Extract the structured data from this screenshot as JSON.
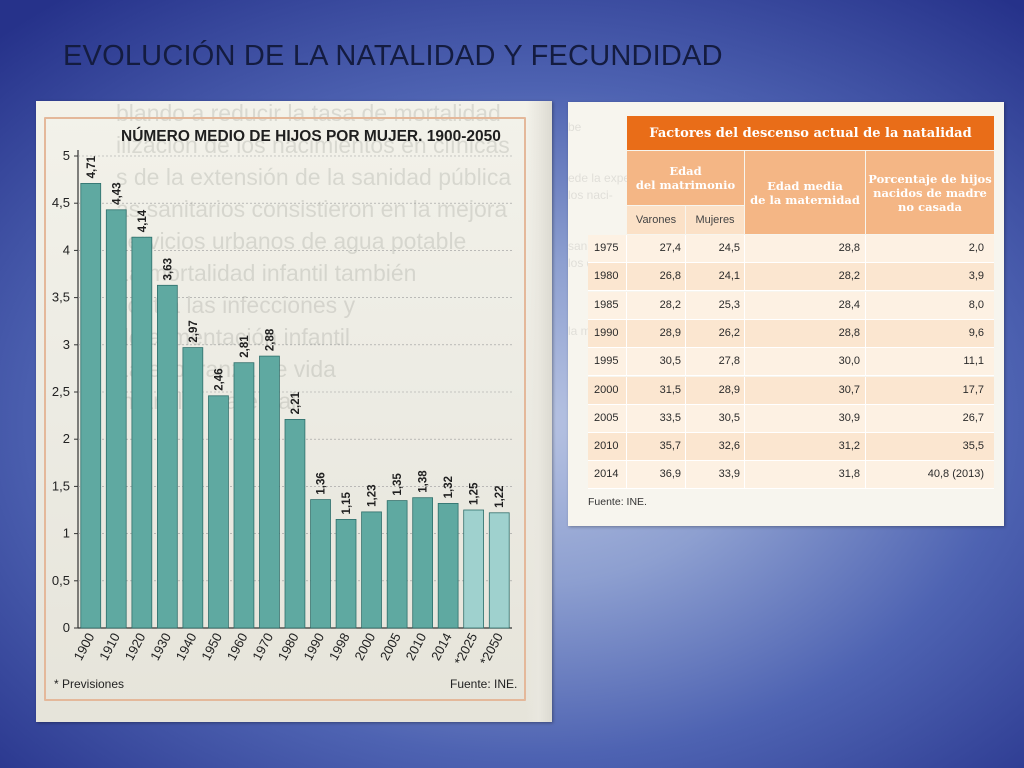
{
  "slide": {
    "title": "EVOLUCIÓN DE LA NATALIDAD Y FECUNDIDAD"
  },
  "chart_data": {
    "type": "bar",
    "title": "NÚMERO MEDIO DE HIJOS POR MUJER. 1900-2050",
    "categories": [
      "1900",
      "1910",
      "1920",
      "1930",
      "1940",
      "1950",
      "1960",
      "1970",
      "1980",
      "1990",
      "1998",
      "2000",
      "2005",
      "2010",
      "2014",
      "*2025",
      "*2050"
    ],
    "values": [
      4.71,
      4.43,
      4.14,
      3.63,
      2.97,
      2.46,
      2.81,
      2.88,
      2.21,
      1.36,
      1.15,
      1.23,
      1.35,
      1.38,
      1.32,
      1.25,
      1.22
    ],
    "value_labels": [
      "4,71",
      "4,43",
      "4,14",
      "3,63",
      "2,97",
      "2,46",
      "2,81",
      "2,88",
      "2,21",
      "1,36",
      "1,15",
      "1,23",
      "1,35",
      "1,38",
      "1,32",
      "1,25",
      "1,22"
    ],
    "projected": [
      false,
      false,
      false,
      false,
      false,
      false,
      false,
      false,
      false,
      false,
      false,
      false,
      false,
      false,
      false,
      true,
      true
    ],
    "y_ticks": [
      "0",
      "0,5",
      "1",
      "1,5",
      "2",
      "2,5",
      "3",
      "3,5",
      "4",
      "4,5",
      "5"
    ],
    "ylim": [
      0,
      5
    ],
    "footnote": "* Previsiones",
    "source": "Fuente: INE.",
    "colors": {
      "bar": "#5fa9a1",
      "bar_projected": "#9fd1ce",
      "bar_edge": "#2f6f6b"
    }
  },
  "table": {
    "title": "Factores del descenso actual de la natalidad",
    "headers": {
      "edad_matrimonio": "Edad\ndel matrimonio",
      "edad_maternidad": "Edad media\nde la maternidad",
      "porcentaje": "Porcentaje de hijos\nnacidos de madre\nno casada"
    },
    "subheaders": [
      "Varones",
      "Mujeres"
    ],
    "rows": [
      {
        "year": "1975",
        "varones": "27,4",
        "mujeres": "24,5",
        "edad_media": "28,8",
        "porcentaje": "2,0"
      },
      {
        "year": "1980",
        "varones": "26,8",
        "mujeres": "24,1",
        "edad_media": "28,2",
        "porcentaje": "3,9"
      },
      {
        "year": "1985",
        "varones": "28,2",
        "mujeres": "25,3",
        "edad_media": "28,4",
        "porcentaje": "8,0"
      },
      {
        "year": "1990",
        "varones": "28,9",
        "mujeres": "26,2",
        "edad_media": "28,8",
        "porcentaje": "9,6"
      },
      {
        "year": "1995",
        "varones": "30,5",
        "mujeres": "27,8",
        "edad_media": "30,0",
        "porcentaje": "11,1"
      },
      {
        "year": "2000",
        "varones": "31,5",
        "mujeres": "28,9",
        "edad_media": "30,7",
        "porcentaje": "17,7"
      },
      {
        "year": "2005",
        "varones": "33,5",
        "mujeres": "30,5",
        "edad_media": "30,9",
        "porcentaje": "26,7"
      },
      {
        "year": "2010",
        "varones": "35,7",
        "mujeres": "32,6",
        "edad_media": "31,2",
        "porcentaje": "35,5"
      },
      {
        "year": "2014",
        "varones": "36,9",
        "mujeres": "33,9",
        "edad_media": "31,8",
        "porcentaje": "40,8 (2013)"
      }
    ],
    "source": "Fuente: INE.",
    "colors": {
      "title_bg": "#e96d18",
      "header_bg": "#f4b685",
      "subheader_bg": "#fbe1c7",
      "row_a": "#fdf1e3",
      "row_b": "#fbe6d0"
    }
  }
}
